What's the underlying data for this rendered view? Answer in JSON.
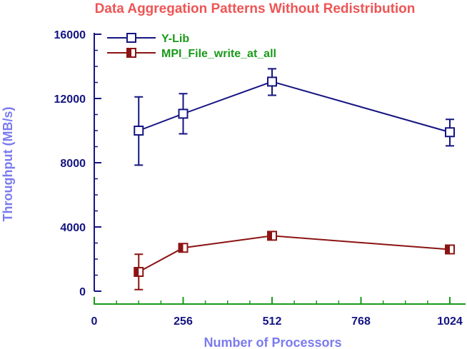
{
  "chart_data": {
    "type": "line",
    "title": "Data Aggregation Patterns Without Redistribution",
    "xlabel": "Number of Processors",
    "ylabel": "Throughput (MB/s)",
    "xlim": [
      0,
      1024
    ],
    "ylim": [
      0,
      16000
    ],
    "xticks": [
      0,
      256,
      512,
      768,
      1024
    ],
    "xtick_labels": [
      "0",
      "256",
      "512",
      "768",
      "1024"
    ],
    "yticks": [
      0,
      4000,
      8000,
      12000,
      16000
    ],
    "ytick_labels": [
      "0",
      "4000",
      "8000",
      "12000",
      "16000"
    ],
    "grid": false,
    "legend_position": "top-left",
    "series": [
      {
        "name": "Y-Lib",
        "color": "#141482",
        "marker": "open-square",
        "x": [
          128,
          256,
          512,
          1024
        ],
        "y": [
          10000,
          11050,
          13050,
          9900
        ],
        "err_low": [
          7850,
          9800,
          12200,
          9050
        ],
        "err_high": [
          12100,
          12300,
          13850,
          10700
        ]
      },
      {
        "name": "MPI_File_write_at_all",
        "color": "#8c1414",
        "marker": "half-filled-square",
        "x": [
          128,
          256,
          512,
          1024
        ],
        "y": [
          1200,
          2700,
          3450,
          2600
        ],
        "err_low": [
          100,
          2550,
          3300,
          2450
        ],
        "err_high": [
          2300,
          2850,
          3600,
          2750
        ]
      }
    ]
  }
}
